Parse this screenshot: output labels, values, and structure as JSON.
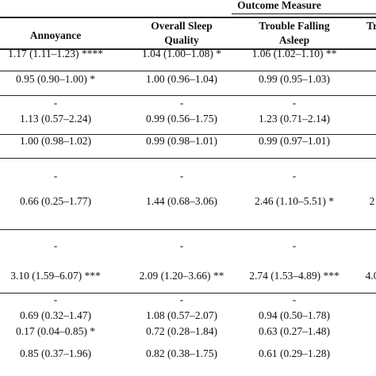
{
  "table": {
    "spanner_header": "Outcome Measure",
    "columns": [
      "Annoyance",
      "Overall Sleep Quality",
      "Trouble Falling Asleep",
      "Tr"
    ],
    "column_lines": [
      [
        "Annoyance"
      ],
      [
        "Overall Sleep",
        "Quality"
      ],
      [
        "Trouble Falling",
        "Asleep"
      ],
      [
        "Tr"
      ]
    ],
    "rows": [
      [
        "1.17 (1.11–1.23) ****",
        "1.04 (1.00–1.08) *",
        "1.06 (1.02–1.10) **",
        ""
      ],
      [
        "0.95 (0.90–1.00) *",
        "1.00 (0.96–1.04)",
        "0.99 (0.95–1.03)",
        ""
      ],
      [
        "-",
        "-",
        "-",
        ""
      ],
      [
        "1.13 (0.57–2.24)",
        "0.99 (0.56–1.75)",
        "1.23 (0.71–2.14)",
        ""
      ],
      [
        "1.00 (0.98–1.02)",
        "0.99 (0.98–1.01)",
        "0.99 (0.97–1.01)",
        ""
      ],
      [
        "-",
        "-",
        "-",
        ""
      ],
      [
        "0.66 (0.25–1.77)",
        "1.44 (0.68–3.06)",
        "2.46 (1.10–5.51) *",
        "2"
      ],
      [
        "-",
        "-",
        "-",
        ""
      ],
      [
        "3.10 (1.59–6.07) ***",
        "2.09 (1.20–3.66) **",
        "2.74 (1.53–4.89) ***",
        "4.0"
      ],
      [
        "-",
        "-",
        "-",
        ""
      ],
      [
        "0.69 (0.32–1.47)",
        "1.08 (0.57–2.07)",
        "0.94 (0.50–1.78)",
        ""
      ],
      [
        "0.17 (0.04–0.85) *",
        "0.72 (0.28–1.84)",
        "0.63 (0.27–1.48)",
        ""
      ],
      [
        "0.85 (0.37–1.96)",
        "0.82 (0.38–1.75)",
        "0.61 (0.29–1.28)",
        ""
      ]
    ]
  }
}
